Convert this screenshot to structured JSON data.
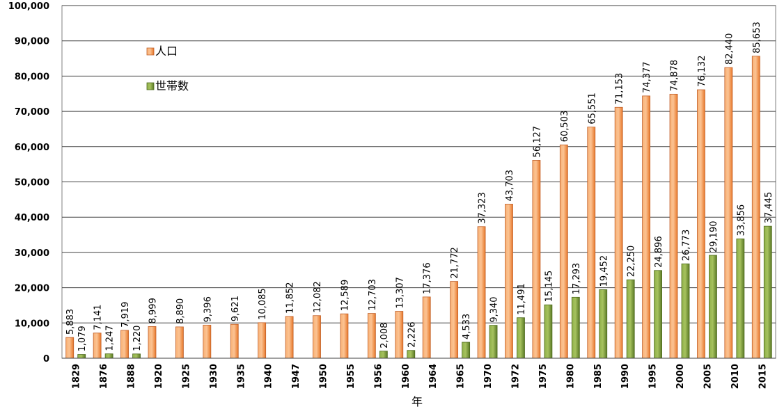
{
  "chart_data": {
    "type": "bar",
    "xlabel": "年",
    "ylabel": "",
    "ylim": [
      0,
      100000
    ],
    "ytick_step": 10000,
    "grid": true,
    "legend_position": "top-left",
    "categories": [
      "1829",
      "1876",
      "1888",
      "1920",
      "1925",
      "1930",
      "1935",
      "1940",
      "1947",
      "1950",
      "1955",
      "1956",
      "1960",
      "1964",
      "1965",
      "1970",
      "1972",
      "1975",
      "1980",
      "1985",
      "1990",
      "1995",
      "2000",
      "2005",
      "2010",
      "2015"
    ],
    "series": [
      {
        "name": "人口",
        "color": "#f79646",
        "values": [
          5883,
          7141,
          7919,
          8999,
          8890,
          9396,
          9621,
          10085,
          11852,
          12082,
          12589,
          12703,
          13307,
          17376,
          21772,
          37323,
          43703,
          56127,
          60503,
          65551,
          71153,
          74377,
          74878,
          76132,
          82440,
          85653
        ],
        "labels": [
          "5,883",
          "7,141",
          "7,919",
          "8,999",
          "8,890",
          "9,396",
          "9,621",
          "10,085",
          "11,852",
          "12,082",
          "12,589",
          "12,703",
          "13,307",
          "17,376",
          "21,772",
          "37,323",
          "43,703",
          "56,127",
          "60,503",
          "65,551",
          "71,153",
          "74,377",
          "74,878",
          "76,132",
          "82,440",
          "85,653"
        ]
      },
      {
        "name": "世帯数",
        "color": "#77933c",
        "values": [
          1079,
          1247,
          1220,
          null,
          null,
          null,
          null,
          null,
          null,
          null,
          null,
          2008,
          2226,
          null,
          4533,
          9340,
          11491,
          15145,
          17293,
          19452,
          22250,
          24896,
          26773,
          29190,
          33856,
          37445
        ],
        "labels": [
          "1,079",
          "1,247",
          "1,220",
          "",
          "",
          "",
          "",
          "",
          "",
          "",
          "",
          "2,008",
          "2,226",
          "",
          "4,533",
          "9,340",
          "11,491",
          "15,145",
          "17,293",
          "19,452",
          "22,250",
          "24,896",
          "26,773",
          "29,190",
          "33,856",
          "37,445"
        ]
      }
    ],
    "ytick_labels": [
      "0",
      "10,000",
      "20,000",
      "30,000",
      "40,000",
      "50,000",
      "60,000",
      "70,000",
      "80,000",
      "90,000",
      "100,000"
    ]
  }
}
